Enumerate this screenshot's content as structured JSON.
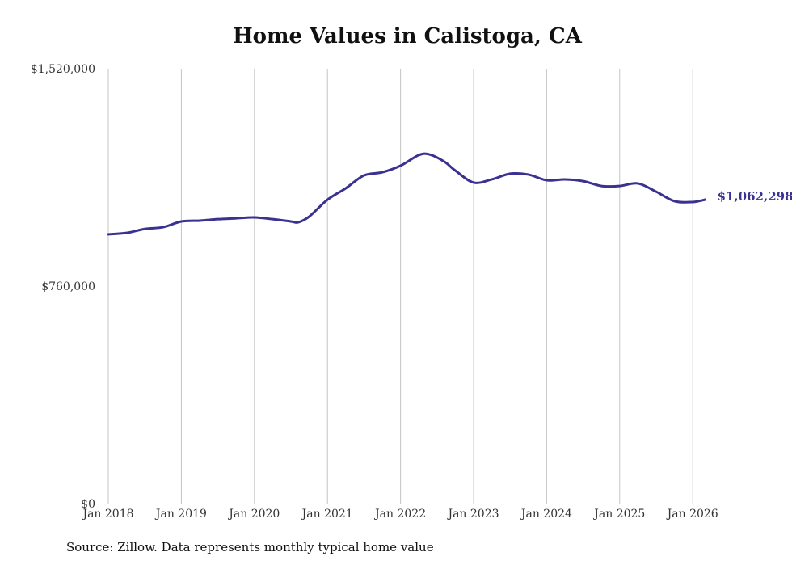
{
  "chart_data": {
    "type": "line",
    "title": "Home Values in Calistoga, CA",
    "xlabel": "",
    "ylabel": "",
    "ylim": [
      0,
      1520000
    ],
    "xlim": [
      2018,
      2026.17
    ],
    "y_ticks": [
      {
        "value": 0,
        "label": "$0"
      },
      {
        "value": 760000,
        "label": "$760,000"
      },
      {
        "value": 1520000,
        "label": "$1,520,000"
      }
    ],
    "x_ticks": [
      {
        "value": 2018,
        "label": "Jan 2018"
      },
      {
        "value": 2019,
        "label": "Jan 2019"
      },
      {
        "value": 2020,
        "label": "Jan 2020"
      },
      {
        "value": 2021,
        "label": "Jan 2021"
      },
      {
        "value": 2022,
        "label": "Jan 2022"
      },
      {
        "value": 2023,
        "label": "Jan 2023"
      },
      {
        "value": 2024,
        "label": "Jan 2024"
      },
      {
        "value": 2025,
        "label": "Jan 2025"
      },
      {
        "value": 2026,
        "label": "Jan 2026"
      }
    ],
    "grid": "vertical",
    "series": [
      {
        "name": "Typical home value",
        "color": "#3a3190",
        "end_label": "$1,062,298",
        "x": [
          2018,
          2018.25,
          2018.5,
          2018.75,
          2019,
          2019.25,
          2019.5,
          2019.75,
          2020,
          2020.25,
          2020.5,
          2020.6,
          2020.75,
          2021,
          2021.25,
          2021.5,
          2021.75,
          2022,
          2022.25,
          2022.4,
          2022.6,
          2022.75,
          2023,
          2023.25,
          2023.5,
          2023.75,
          2024,
          2024.25,
          2024.5,
          2024.75,
          2025,
          2025.25,
          2025.5,
          2025.75,
          2026,
          2026.17
        ],
        "y": [
          941000,
          946000,
          960000,
          966000,
          986000,
          989000,
          994000,
          997000,
          1000000,
          994000,
          986000,
          983000,
          1003000,
          1062000,
          1102000,
          1147000,
          1158000,
          1181000,
          1218000,
          1220000,
          1195000,
          1164000,
          1122000,
          1133000,
          1153000,
          1150000,
          1130000,
          1133000,
          1127000,
          1110000,
          1110000,
          1119000,
          1090000,
          1057000,
          1054000,
          1062298
        ]
      }
    ]
  },
  "footer": {
    "source": "Source: Zillow. Data represents monthly typical home value"
  }
}
